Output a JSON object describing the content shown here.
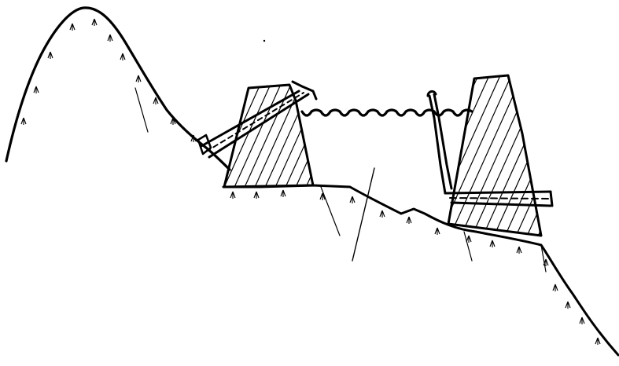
{
  "diagram": {
    "kind": "line-drawing",
    "colors": {
      "ink": "#000000",
      "background": "#ffffff"
    },
    "elements": [
      "terrain-profile",
      "upper-dam",
      "headrace-pipe",
      "reservoir-water",
      "lower-dam",
      "outlet-pipe",
      "intake-tower"
    ]
  }
}
